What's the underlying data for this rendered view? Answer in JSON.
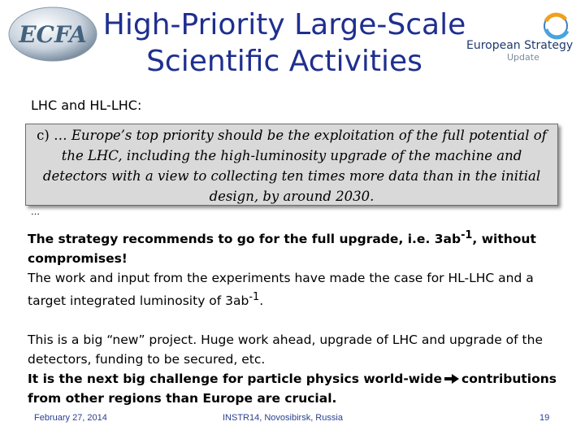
{
  "logos": {
    "left_text": "ECFA",
    "right_line1": "European Strategy",
    "right_line2": "Update"
  },
  "title": {
    "line1": "High-Priority Large-Scale",
    "line2": "Scientific Activities"
  },
  "subtitle": "LHC and HL-LHC:",
  "quote": {
    "lead": "c) … ",
    "text": "Europe’s top priority should be the exploitation of the full potential of the LHC, including the high-luminosity upgrade of the machine and detectors with a view to collecting ten times more data than in the initial design, by around 2030.",
    "ellipsis": "…"
  },
  "body": {
    "p1_bold_a": "The strategy recommends to go for the full upgrade, i.e. 3ab",
    "p1_sup": "-1",
    "p1_bold_b": ", without compromises!",
    "p2_a": "The work and input from the experiments have made the case for HL-LHC and a target integrated luminosity of 3ab",
    "p2_sup": "-1",
    "p2_b": ".",
    "p3": "This is a big “new” project. Huge work ahead, upgrade of LHC and upgrade of the detectors, funding to be secured, etc.",
    "p4_a": "It is the next big challenge for particle physics world-wide",
    "p4_b": "contributions from other regions than Europe are crucial."
  },
  "footer": {
    "date": "February 27, 2014",
    "venue": "INSTR14, Novosibirsk, Russia",
    "page": "19"
  },
  "colors": {
    "title": "#1f2f8f",
    "footer": "#2a3f8f",
    "quote_bg": "#d9d9d9"
  }
}
